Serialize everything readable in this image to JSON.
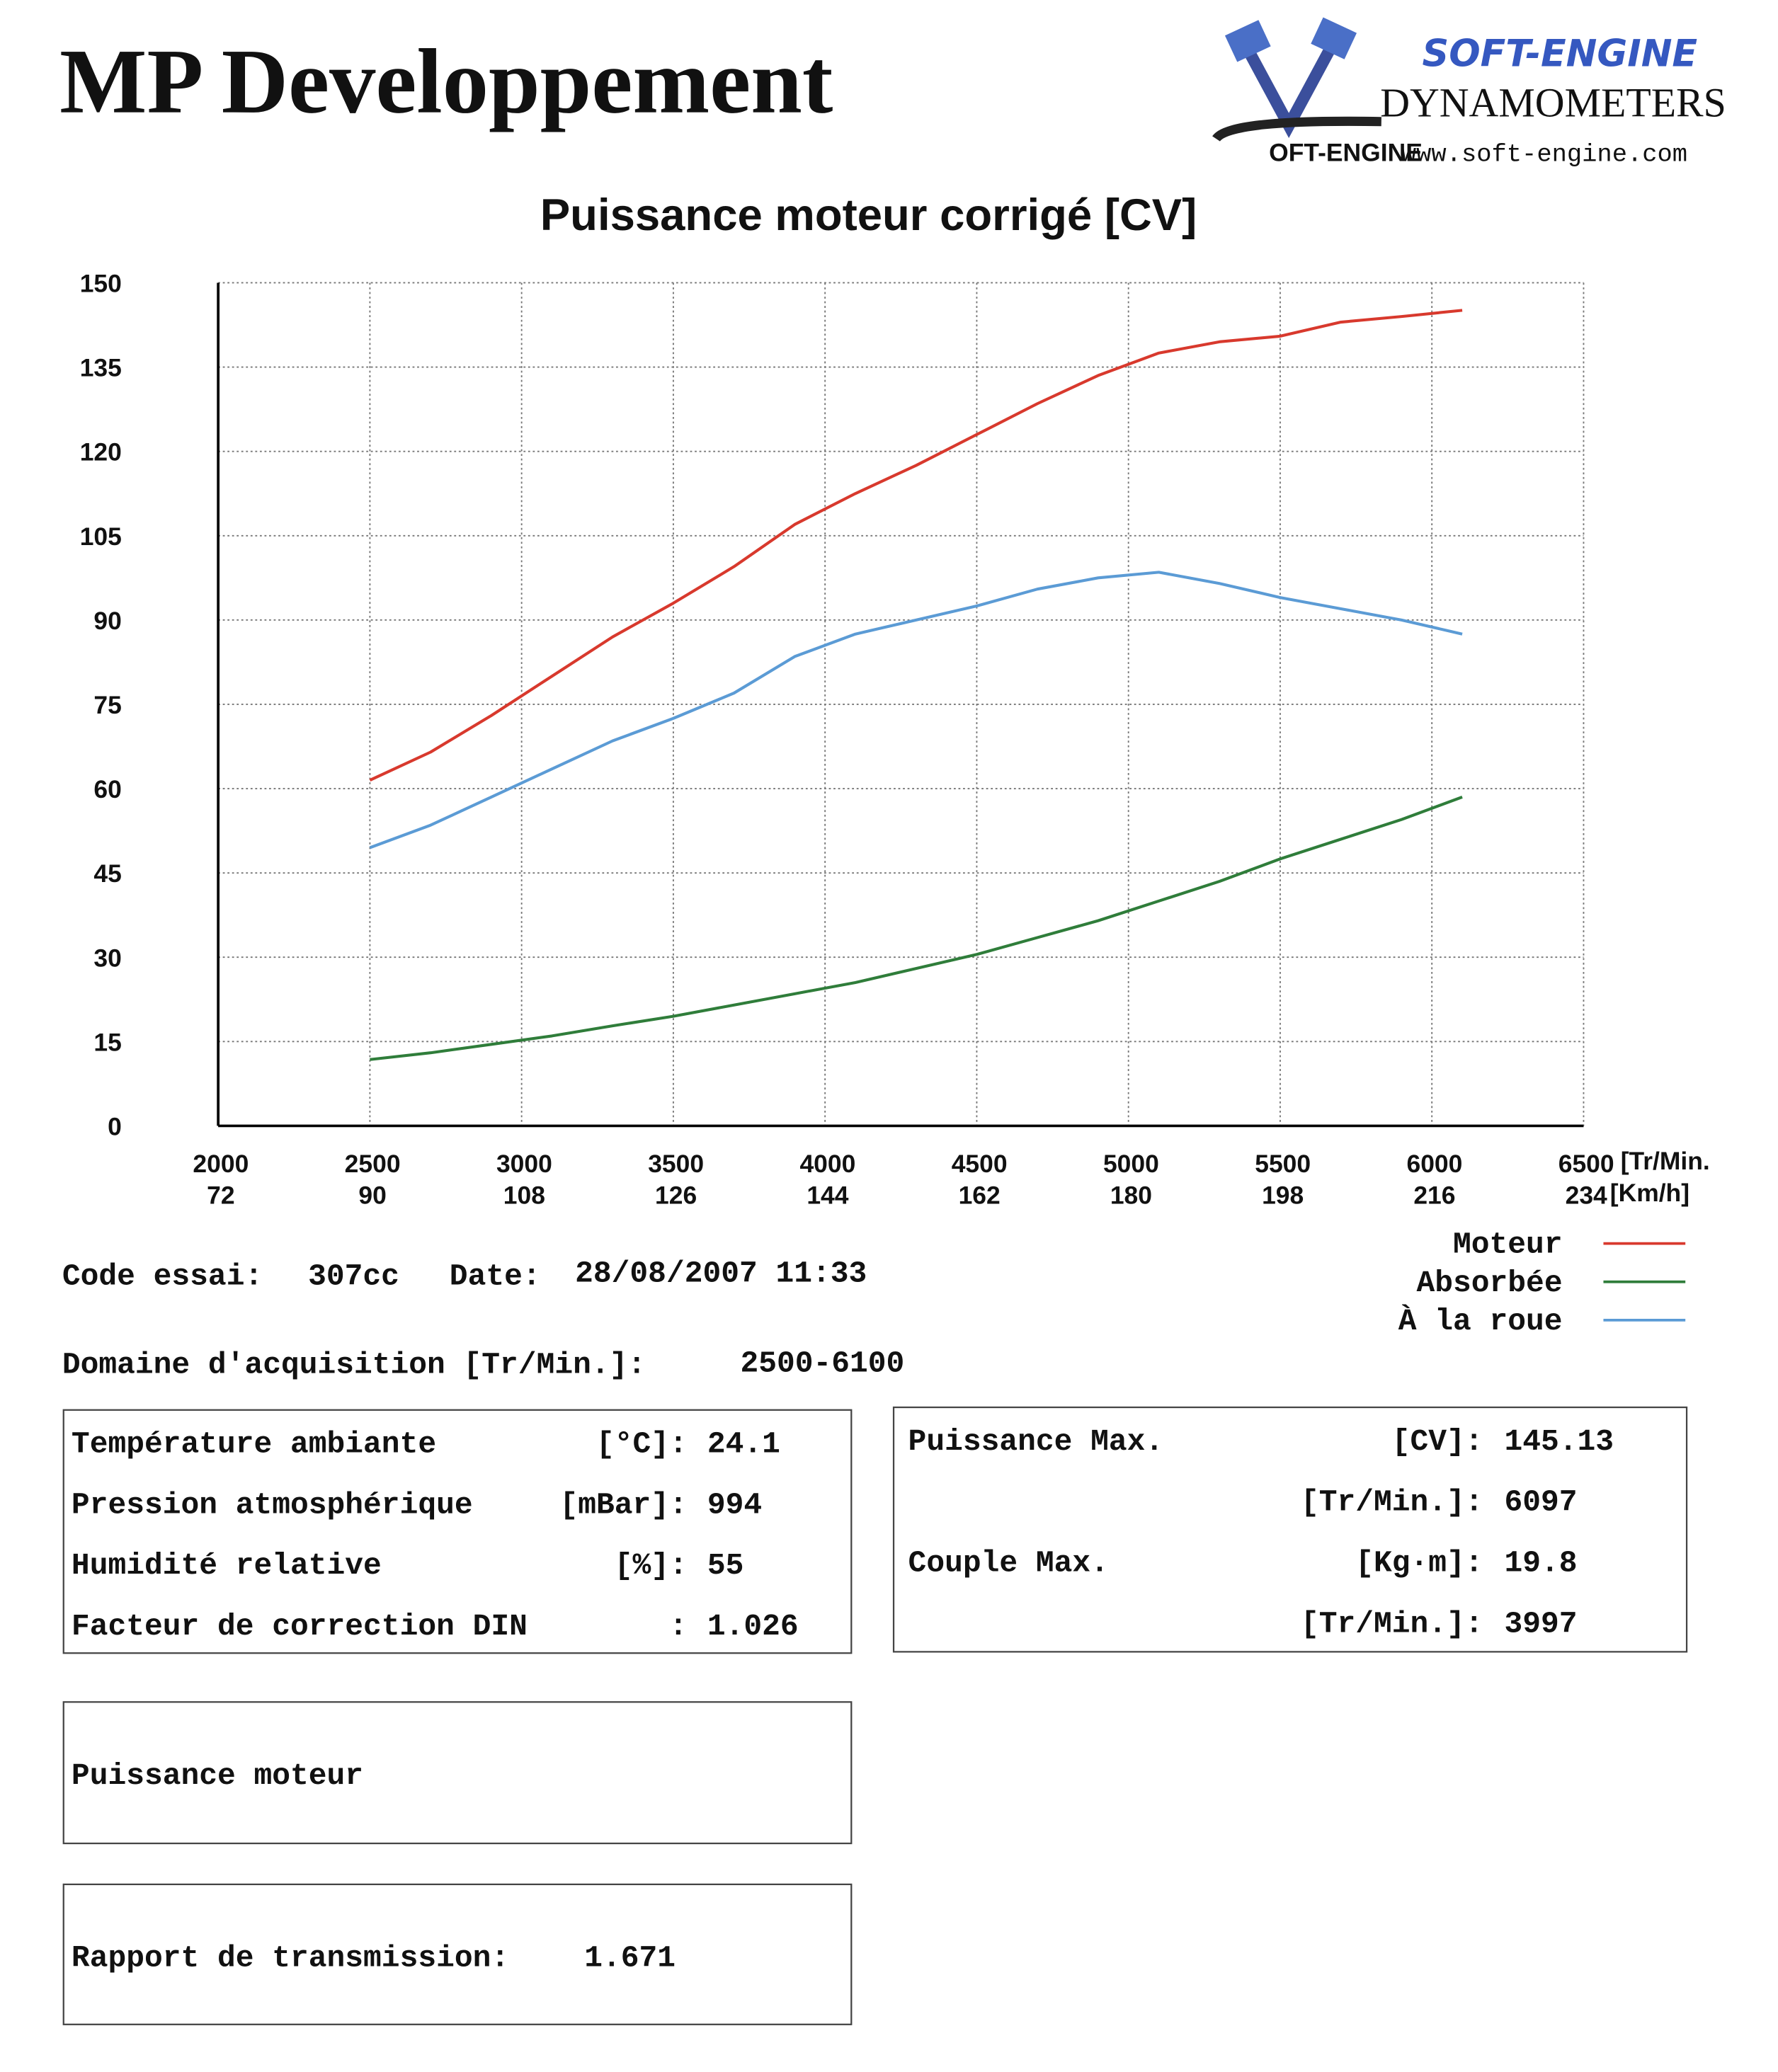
{
  "header": {
    "title": "MP Developpement",
    "logo_brand": "SOFT-ENGINE",
    "logo_sub": "DYNAMOMETERS",
    "logo_mark": "OFT-ENGINE",
    "logo_url": "www.soft-engine.com"
  },
  "chart_data": {
    "type": "line",
    "title": "Puissance moteur corrigé [CV]",
    "x": [
      2500,
      2700,
      2900,
      3100,
      3300,
      3500,
      3700,
      3900,
      4100,
      4300,
      4500,
      4700,
      4900,
      5100,
      5300,
      5500,
      5700,
      5900,
      6100
    ],
    "series": [
      {
        "name": "Moteur",
        "color": "#d8392d",
        "values": [
          61.5,
          66.5,
          73,
          80,
          87,
          93,
          99.5,
          107,
          112.5,
          117.5,
          123,
          128.5,
          133.5,
          137.5,
          139.5,
          140.5,
          143,
          144,
          145.1
        ]
      },
      {
        "name": "Absorbée",
        "color": "#2f7d3a",
        "values": [
          11.8,
          13,
          14.5,
          16,
          17.8,
          19.5,
          21.5,
          23.5,
          25.5,
          28,
          30.5,
          33.5,
          36.5,
          40,
          43.5,
          47.5,
          51,
          54.5,
          58.5
        ]
      },
      {
        "name": "À la roue",
        "color": "#5b9bd5",
        "values": [
          49.5,
          53.5,
          58.5,
          63.5,
          68.5,
          72.5,
          77,
          83.5,
          87.5,
          90,
          92.5,
          95.5,
          97.5,
          98.5,
          96.5,
          94,
          92,
          90,
          87.5
        ]
      }
    ],
    "xlim": [
      2000,
      6500
    ],
    "xticks": [
      2000,
      2500,
      3000,
      3500,
      4000,
      4500,
      5000,
      5500,
      6000,
      6500
    ],
    "xlabel": "[Tr/Min.",
    "x2lim": [
      72,
      234
    ],
    "x2ticks": [
      72,
      90,
      108,
      126,
      144,
      162,
      180,
      198,
      216,
      234
    ],
    "x2label": "[Km/h]",
    "ylim": [
      0,
      150
    ],
    "yticks": [
      0,
      15,
      30,
      45,
      60,
      75,
      90,
      105,
      120,
      135,
      150
    ],
    "grid": true,
    "legend": "right"
  },
  "test": {
    "code_label": "Code essai:",
    "code": "307cc",
    "date_label": "Date:",
    "date": "28/08/2007 11:33",
    "range_label": "Domaine d'acquisition [Tr/Min.]:",
    "range": "2500-6100"
  },
  "conditions": [
    {
      "label": "Température ambiante",
      "unit": "[°C]:",
      "value": "24.1"
    },
    {
      "label": "Pression atmosphérique",
      "unit": "[mBar]:",
      "value": "994"
    },
    {
      "label": "Humidité relative",
      "unit": "[%]:",
      "value": "55"
    },
    {
      "label": "Facteur de correction DIN",
      "unit": ":",
      "value": "1.026"
    }
  ],
  "maxima": [
    {
      "label": "Puissance Max.",
      "unit": "[CV]:",
      "value": "145.13"
    },
    {
      "unit": "[Tr/Min.]:",
      "value": "6097"
    },
    {
      "label": "Couple Max.",
      "unit": "[Kg·m]:",
      "value": "19.8"
    },
    {
      "unit": "[Tr/Min.]:",
      "value": "3997"
    }
  ],
  "power_box": "Puissance moteur",
  "transmission": {
    "label": "Rapport de transmission:",
    "value": "1.671"
  }
}
